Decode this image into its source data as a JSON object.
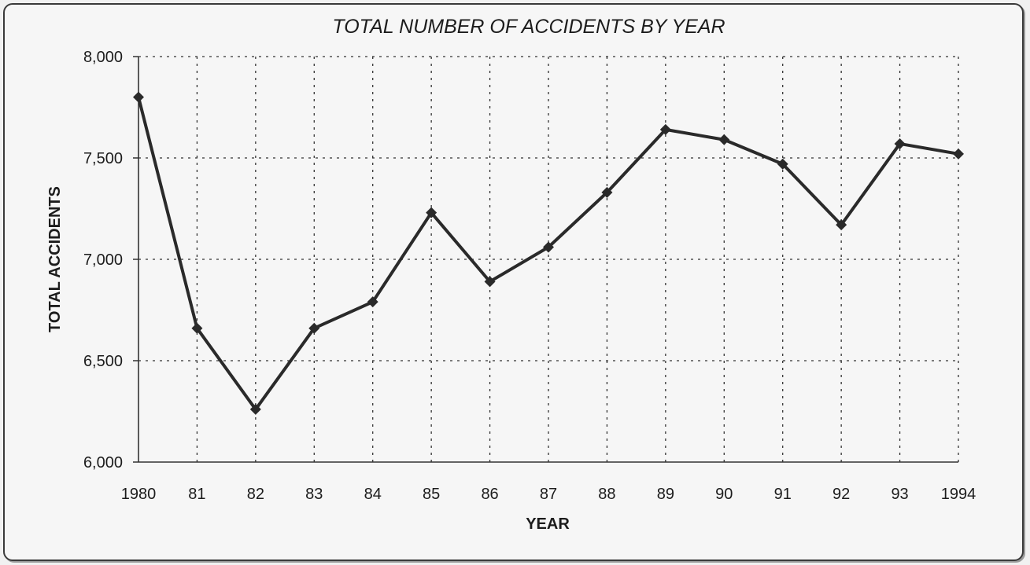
{
  "chart_data": {
    "type": "line",
    "title": "TOTAL NUMBER OF ACCIDENTS BY YEAR",
    "xlabel": "YEAR",
    "ylabel": "TOTAL ACCIDENTS",
    "categories": [
      "1980",
      "81",
      "82",
      "83",
      "84",
      "85",
      "86",
      "87",
      "88",
      "89",
      "90",
      "91",
      "92",
      "93",
      "1994"
    ],
    "yticks": [
      "6,000",
      "6,500",
      "7,000",
      "7,500",
      "8,000"
    ],
    "ylim": [
      6000,
      8000
    ],
    "grid": true,
    "series": [
      {
        "values": [
          7800,
          6660,
          6260,
          6660,
          6790,
          7230,
          6890,
          7060,
          7330,
          7640,
          7590,
          7470,
          7170,
          7570,
          7520
        ]
      }
    ]
  },
  "colors": {
    "line": "#2a2a2a",
    "grid": "#333333",
    "axis": "#333333"
  }
}
